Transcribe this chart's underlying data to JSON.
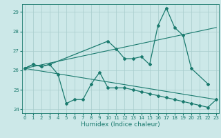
{
  "xlabel": "Humidex (Indice chaleur)",
  "x": [
    0,
    1,
    2,
    3,
    4,
    5,
    6,
    7,
    8,
    9,
    10,
    11,
    12,
    13,
    14,
    15,
    16,
    17,
    18,
    19,
    20,
    21,
    22,
    23
  ],
  "line1_x": [
    0,
    1,
    2,
    3,
    10,
    11,
    12,
    13,
    14,
    15,
    16,
    17,
    18,
    19,
    20,
    22
  ],
  "line1_y": [
    26.1,
    26.3,
    26.2,
    26.3,
    27.5,
    27.1,
    26.6,
    26.6,
    26.7,
    26.3,
    28.3,
    29.2,
    28.2,
    27.8,
    26.1,
    25.3
  ],
  "line2_x": [
    0,
    1,
    2,
    3,
    4,
    5,
    6,
    7,
    8,
    9,
    10,
    11,
    12,
    13,
    14,
    15,
    16,
    17,
    18,
    19,
    20,
    21,
    22,
    23
  ],
  "line2_y": [
    26.1,
    26.3,
    26.2,
    26.3,
    25.8,
    24.3,
    24.5,
    24.5,
    25.3,
    25.9,
    25.1,
    25.1,
    25.1,
    25.0,
    24.9,
    24.8,
    24.7,
    24.6,
    24.5,
    24.4,
    24.3,
    24.2,
    24.1,
    24.5
  ],
  "trend1_x": [
    0,
    23
  ],
  "trend1_y": [
    26.1,
    28.2
  ],
  "trend2_x": [
    0,
    23
  ],
  "trend2_y": [
    26.1,
    24.5
  ],
  "color": "#1a7a6e",
  "bg_color": "#cce8e8",
  "grid_color": "#a8cccc",
  "ylim": [
    23.8,
    29.4
  ],
  "yticks": [
    24,
    25,
    26,
    27,
    28,
    29
  ],
  "xlim": [
    -0.3,
    23.3
  ],
  "xticks": [
    0,
    1,
    2,
    3,
    4,
    5,
    6,
    7,
    8,
    9,
    10,
    11,
    12,
    13,
    14,
    15,
    16,
    17,
    18,
    19,
    20,
    21,
    22,
    23
  ]
}
